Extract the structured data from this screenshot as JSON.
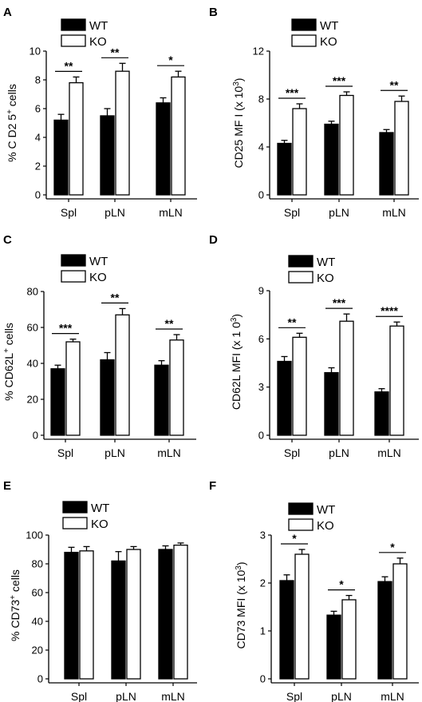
{
  "legend_labels": {
    "wt": "WT",
    "ko": "KO"
  },
  "chart_data": [
    {
      "panel": "A",
      "type": "bar",
      "categories": [
        "Spl",
        "pLN",
        "mLN"
      ],
      "series": [
        {
          "name": "WT",
          "values": [
            5.2,
            5.5,
            6.4
          ],
          "errors": [
            0.4,
            0.5,
            0.35
          ]
        },
        {
          "name": "KO",
          "values": [
            7.8,
            8.6,
            8.2
          ],
          "errors": [
            0.4,
            0.55,
            0.4
          ]
        }
      ],
      "ylabel_parts": [
        "% C D2 5",
        "+",
        " cells"
      ],
      "ylim": [
        0,
        10
      ],
      "yticks": [
        0,
        2,
        4,
        6,
        8,
        10
      ],
      "ytick_labels": [
        "0",
        "2",
        "4",
        "6",
        "8",
        "10"
      ],
      "significance": [
        "**",
        "**",
        "*"
      ],
      "legend": "top-left"
    },
    {
      "panel": "B",
      "type": "bar",
      "categories": [
        "Spl",
        "pLN",
        "mLN"
      ],
      "series": [
        {
          "name": "WT",
          "values": [
            4.3,
            5.9,
            5.2
          ],
          "errors": [
            0.25,
            0.25,
            0.25
          ]
        },
        {
          "name": "KO",
          "values": [
            7.2,
            8.3,
            7.8
          ],
          "errors": [
            0.4,
            0.3,
            0.45
          ]
        }
      ],
      "ylabel_parts": [
        "CD25 MF I (x 10",
        "3",
        ")"
      ],
      "ylim": [
        0,
        12
      ],
      "yticks": [
        0,
        4,
        8,
        12
      ],
      "ytick_labels": [
        "0",
        "4",
        "8",
        "12"
      ],
      "significance": [
        "***",
        "***",
        "**"
      ],
      "legend": "top-left"
    },
    {
      "panel": "C",
      "type": "bar",
      "categories": [
        "Spl",
        "pLN",
        "mLN"
      ],
      "series": [
        {
          "name": "WT",
          "values": [
            37,
            42,
            39
          ],
          "errors": [
            2,
            4,
            2.5
          ]
        },
        {
          "name": "KO",
          "values": [
            52,
            67,
            53
          ],
          "errors": [
            1.5,
            3.5,
            3
          ]
        }
      ],
      "ylabel_parts": [
        "% CD62L",
        "+",
        " cells"
      ],
      "ylim": [
        0,
        80
      ],
      "yticks": [
        0,
        20,
        40,
        60,
        80
      ],
      "ytick_labels": [
        "0",
        "20",
        "40",
        "60",
        "80"
      ],
      "significance": [
        "***",
        "**",
        "**"
      ],
      "legend": "top-left"
    },
    {
      "panel": "D",
      "type": "bar",
      "categories": [
        "Spl",
        "pLN",
        "mLN"
      ],
      "series": [
        {
          "name": "WT",
          "values": [
            4.6,
            3.9,
            2.7
          ],
          "errors": [
            0.3,
            0.3,
            0.2
          ]
        },
        {
          "name": "KO",
          "values": [
            6.1,
            7.1,
            6.8
          ],
          "errors": [
            0.25,
            0.45,
            0.25
          ]
        }
      ],
      "ylabel_parts": [
        "CD62L MFI (x 1 0",
        "3",
        ")"
      ],
      "ylim": [
        0,
        9
      ],
      "yticks": [
        0,
        3,
        6,
        9
      ],
      "ytick_labels": [
        "0",
        "3",
        "6",
        "9"
      ],
      "significance": [
        "**",
        "***",
        "****"
      ],
      "legend": "top-left"
    },
    {
      "panel": "E",
      "type": "bar",
      "categories": [
        "Spl",
        "pLN",
        "mLN"
      ],
      "series": [
        {
          "name": "WT",
          "values": [
            88,
            82,
            90
          ],
          "errors": [
            3.5,
            6.5,
            2.5
          ]
        },
        {
          "name": "KO",
          "values": [
            89,
            90,
            93
          ],
          "errors": [
            3,
            2,
            1.5
          ]
        }
      ],
      "ylabel_parts": [
        "% CD73",
        "+",
        " cells"
      ],
      "ylim": [
        0,
        100
      ],
      "yticks": [
        0,
        20,
        40,
        60,
        80,
        100
      ],
      "ytick_labels": [
        "0",
        "20",
        "40",
        "60",
        "80",
        "100"
      ],
      "significance": [],
      "legend": "top-right"
    },
    {
      "panel": "F",
      "type": "bar",
      "categories": [
        "Spl",
        "pLN",
        "mLN"
      ],
      "series": [
        {
          "name": "WT",
          "values": [
            2.05,
            1.33,
            2.03
          ],
          "errors": [
            0.12,
            0.08,
            0.1
          ]
        },
        {
          "name": "KO",
          "values": [
            2.6,
            1.65,
            2.4
          ],
          "errors": [
            0.1,
            0.09,
            0.12
          ]
        }
      ],
      "ylabel_parts": [
        "CD73 MFI (x 10",
        "3",
        ")"
      ],
      "ylim": [
        0,
        3
      ],
      "yticks": [
        0,
        1,
        2,
        3
      ],
      "ytick_labels": [
        "0",
        "1",
        "2",
        "3"
      ],
      "significance": [
        "*",
        "*",
        "*"
      ],
      "legend": "top-left"
    }
  ]
}
